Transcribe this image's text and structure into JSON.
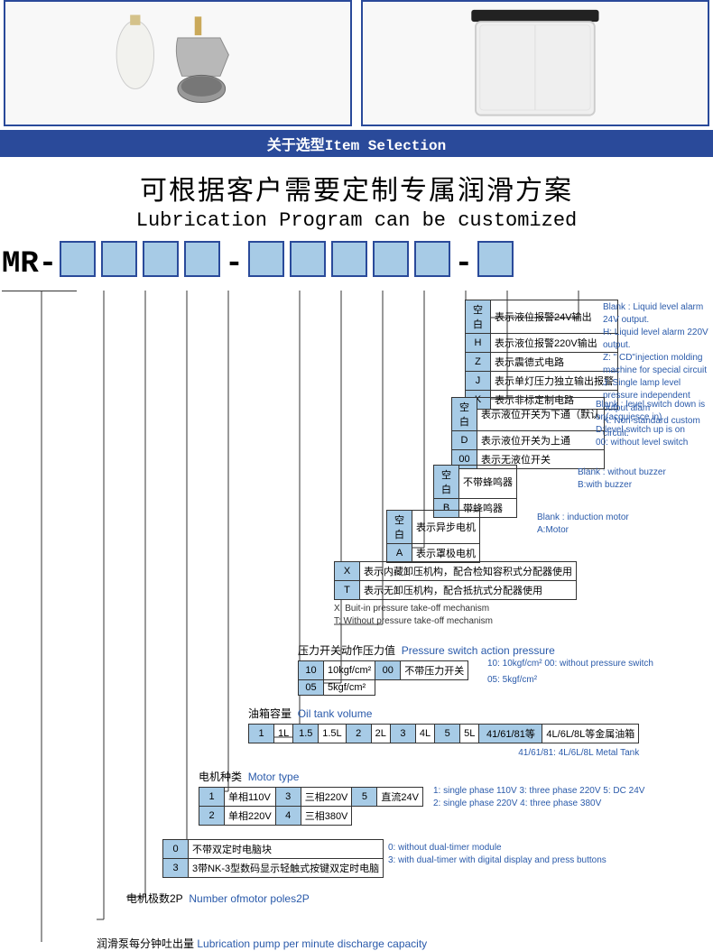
{
  "section_bar": "关于选型Item Selection",
  "headline_cn": "可根据客户需要定制专属润滑方案",
  "headline_en": "Lubrication Program can be customized",
  "prefix": "MR-",
  "colors": {
    "brand": "#2a4a9a",
    "box_fill": "#a7cbe6",
    "en_text": "#2a5aaa"
  },
  "boxes": {
    "group1": 4,
    "group2": 5,
    "group3": 1
  },
  "groups": {
    "g_alarm": {
      "rows": [
        {
          "code": "空白",
          "cn": "表示液位报警24V输出"
        },
        {
          "code": "H",
          "cn": "表示液位报警220V输出"
        },
        {
          "code": "Z",
          "cn": "表示震德式电路"
        },
        {
          "code": "J",
          "cn": "表示单灯压力独立输出报警"
        },
        {
          "code": "K",
          "cn": "表示非标定制电路"
        }
      ],
      "en": [
        "Blank : Liquid level alarm 24V output.",
        "H: Liquid level alarm 220V output.",
        "Z: \" CD\"injection molding machine for special circuit",
        "J: Single lamp level pressure independent output alam",
        "K: Non-standard custom circuit."
      ]
    },
    "g_level": {
      "rows": [
        {
          "code": "空白",
          "cn": "表示液位开关为下通（默认"
        },
        {
          "code": "D",
          "cn": "表示液位开关为上通"
        },
        {
          "code": "00",
          "cn": "表示无液位开关"
        }
      ],
      "en": [
        "Blank : level switch down is on(acquiesce in)",
        "D:level switch up is on",
        "00: without level switch"
      ]
    },
    "g_buzzer": {
      "rows": [
        {
          "code": "空白",
          "cn": "不带蜂鸣器"
        },
        {
          "code": "B",
          "cn": "带蜂鸣器"
        }
      ],
      "en": [
        "Blank : without buzzer",
        "B:with buzzer"
      ]
    },
    "g_motor2": {
      "rows": [
        {
          "code": "空白",
          "cn": "表示异步电机"
        },
        {
          "code": "A",
          "cn": "表示罩极电机"
        }
      ],
      "en": [
        "Blank : induction motor",
        "A:Motor"
      ]
    },
    "g_relief": {
      "rows": [
        {
          "code": "X",
          "cn": "表示内藏卸压机构，配合检知容积式分配器使用"
        },
        {
          "code": "T",
          "cn": "表示无卸压机构，配合抵抗式分配器使用"
        }
      ],
      "notes": [
        "X: Buit-in pressure take-off mechanism",
        "T: Without pressure take-off mechanism"
      ]
    },
    "g_pressure": {
      "title_cn": "压力开关动作压力值",
      "title_en": "Pressure switch action pressure",
      "rows": [
        {
          "code": "10",
          "cn": "10kgf/cm²",
          "code2": "00",
          "cn2": "不带压力开关"
        },
        {
          "code": "05",
          "cn": "5kgf/cm²"
        }
      ],
      "en": [
        "10: 10kgf/cm²    00: without pressure switch",
        "05: 5kgf/cm²"
      ]
    },
    "g_tank": {
      "title_cn": "油箱容量",
      "title_en": "Oil tank volume",
      "rows": [
        {
          "code": "1",
          "cn": "1L"
        },
        {
          "code": "1.5",
          "cn": "1.5L"
        },
        {
          "code": "2",
          "cn": "2L"
        },
        {
          "code": "3",
          "cn": "4L"
        },
        {
          "code": "5",
          "cn": "5L"
        },
        {
          "code": "41/61/81等",
          "cn": "4L/6L/8L等金属油箱"
        }
      ],
      "en": "41/61/81:  4L/6L/8L Metal Tank"
    },
    "g_motor": {
      "title_cn": "电机种类",
      "title_en": "Motor type",
      "rows": [
        {
          "code": "1",
          "cn": "单相110V",
          "code2": "3",
          "cn2": "三相220V",
          "code3": "5",
          "cn3": "直流24V"
        },
        {
          "code": "2",
          "cn": "单相220V",
          "code2": "4",
          "cn2": "三相380V"
        }
      ],
      "en": [
        "1: single phase 110V   3: three phase 220V   5: DC 24V",
        "2: single phase 220V   4: three phase 380V"
      ]
    },
    "g_timer": {
      "rows": [
        {
          "code": "0",
          "cn": "不带双定时电脑块"
        },
        {
          "code": "3",
          "cn": "3带NK-3型数码显示轻触式按键双定时电脑"
        }
      ],
      "en": [
        "0: without dual-timer module",
        "3: with dual-timer with digital display and press buttons"
      ]
    },
    "g_poles": {
      "cn": "电机极数2P",
      "en": "Number ofmotor poles2P"
    },
    "g_discharge": {
      "cn": "润滑泵每分钟吐出量",
      "en": "Lubrication pump per minute discharge capacity"
    }
  }
}
